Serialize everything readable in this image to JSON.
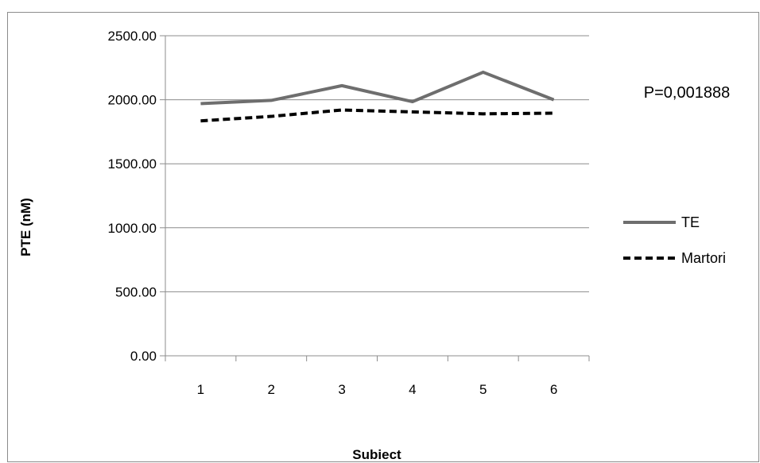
{
  "chart_data": {
    "type": "line",
    "categories": [
      "1",
      "2",
      "3",
      "4",
      "5",
      "6"
    ],
    "series": [
      {
        "name": "TE",
        "values": [
          1970,
          1995,
          2110,
          1985,
          2215,
          2000
        ],
        "color": "#6e6e6e",
        "style": "solid"
      },
      {
        "name": "Martori",
        "values": [
          1835,
          1870,
          1920,
          1905,
          1890,
          1895
        ],
        "color": "#000000",
        "style": "dashed"
      }
    ],
    "xlabel": "Subiect",
    "ylabel": "PTE (nM)",
    "ylim": [
      0,
      2500
    ],
    "yticks": [
      "0.00",
      "500.00",
      "1000.00",
      "1500.00",
      "2000.00",
      "2500.00"
    ],
    "grid": true,
    "legend_position": "right",
    "annotation": "P=0,001888"
  }
}
